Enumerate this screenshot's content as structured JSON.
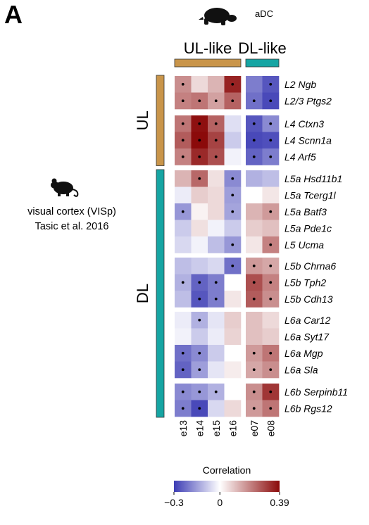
{
  "panel_label": "A",
  "species_label": "aDC",
  "source": {
    "line1": "visual cortex (VISp)",
    "line2": "Tasic et al. 2016"
  },
  "icons": {
    "species_icon": "turtle-icon",
    "source_icon": "mouse-icon"
  },
  "chart_data": {
    "type": "heatmap",
    "column_groups": [
      {
        "label": "UL-like",
        "color": "#c9954a",
        "columns": [
          "e13",
          "e14",
          "e15",
          "e16"
        ]
      },
      {
        "label": "DL-like",
        "color": "#16a5a3",
        "columns": [
          "e07",
          "e08"
        ]
      }
    ],
    "row_groups": [
      {
        "label": "UL",
        "color": "#c9954a",
        "blocks": [
          2,
          3
        ]
      },
      {
        "label": "DL",
        "color": "#16a5a3",
        "blocks": [
          5,
          3,
          4,
          2
        ]
      }
    ],
    "rows": [
      {
        "label": "L2 Ngb",
        "values": [
          0.18,
          0.06,
          0.12,
          0.35
        ],
        "sig": [
          true,
          false,
          false,
          true
        ]
      },
      {
        "label": "L2/3 Ptgs2",
        "values": [
          0.2,
          0.22,
          0.15,
          0.25
        ],
        "sig": [
          true,
          true,
          true,
          true
        ]
      },
      {
        "label": "L4 Ctxn3",
        "values": [
          0.22,
          0.38,
          0.25,
          -0.05
        ],
        "sig": [
          true,
          true,
          true,
          false
        ]
      },
      {
        "label": "L4 Scnn1a",
        "values": [
          0.26,
          0.39,
          0.3,
          -0.08
        ],
        "sig": [
          true,
          true,
          true,
          false
        ]
      },
      {
        "label": "L4 Arf5",
        "values": [
          0.2,
          0.34,
          0.28,
          -0.02
        ],
        "sig": [
          true,
          true,
          true,
          false
        ]
      },
      {
        "label": "L5a Hsd11b1",
        "values": [
          0.12,
          0.24,
          0.05,
          -0.18
        ],
        "sig": [
          false,
          true,
          false,
          true
        ]
      },
      {
        "label": "L5a Tcerg1l",
        "values": [
          -0.03,
          0.08,
          0.06,
          -0.15
        ],
        "sig": [
          false,
          false,
          false,
          true
        ]
      },
      {
        "label": "L5a Batf3",
        "values": [
          -0.16,
          0.02,
          0.06,
          -0.14
        ],
        "sig": [
          true,
          false,
          false,
          true
        ]
      },
      {
        "label": "L5a Pde1c",
        "values": [
          -0.08,
          0.05,
          -0.02,
          -0.08
        ],
        "sig": [
          false,
          false,
          false,
          false
        ]
      },
      {
        "label": "L5 Ucma",
        "values": [
          -0.06,
          -0.02,
          -0.1,
          -0.16
        ],
        "sig": [
          false,
          false,
          false,
          true
        ]
      },
      {
        "label": "L5b Chrna6",
        "values": [
          -0.1,
          -0.08,
          -0.06,
          -0.22
        ],
        "sig": [
          false,
          false,
          false,
          true
        ]
      },
      {
        "label": "L5b Tph2",
        "values": [
          -0.12,
          -0.24,
          -0.2,
          0.0
        ],
        "sig": [
          true,
          true,
          true,
          false
        ]
      },
      {
        "label": "L5b Cdh13",
        "values": [
          -0.1,
          -0.26,
          -0.2,
          0.04
        ],
        "sig": [
          false,
          true,
          true,
          false
        ]
      },
      {
        "label": "L6a Car12",
        "values": [
          -0.03,
          -0.12,
          -0.04,
          0.08
        ],
        "sig": [
          false,
          true,
          false,
          false
        ]
      },
      {
        "label": "L6a Syt17",
        "values": [
          -0.02,
          -0.08,
          -0.03,
          0.07
        ],
        "sig": [
          false,
          false,
          false,
          false
        ]
      },
      {
        "label": "L6a Mgp",
        "values": [
          -0.22,
          -0.18,
          -0.08,
          0.0
        ],
        "sig": [
          true,
          true,
          false,
          false
        ]
      },
      {
        "label": "L6a Sla",
        "values": [
          -0.24,
          -0.15,
          -0.04,
          0.03
        ],
        "sig": [
          true,
          true,
          false,
          false
        ]
      },
      {
        "label": "L6b Serpinb11",
        "values": [
          -0.18,
          -0.16,
          -0.12,
          0.0
        ],
        "sig": [
          true,
          true,
          true,
          false
        ]
      },
      {
        "label": "L6b Rgs12",
        "values": [
          -0.2,
          -0.28,
          -0.06,
          0.06
        ],
        "sig": [
          true,
          true,
          false,
          false
        ]
      }
    ],
    "rows_dl": [
      {
        "values": [
          -0.2,
          -0.26
        ],
        "sig": [
          false,
          true
        ]
      },
      {
        "values": [
          -0.22,
          -0.28
        ],
        "sig": [
          true,
          true
        ]
      },
      {
        "values": [
          -0.26,
          -0.18
        ],
        "sig": [
          true,
          true
        ]
      },
      {
        "values": [
          -0.28,
          -0.27
        ],
        "sig": [
          true,
          true
        ]
      },
      {
        "values": [
          -0.24,
          -0.2
        ],
        "sig": [
          true,
          true
        ]
      },
      {
        "values": [
          -0.12,
          -0.1
        ],
        "sig": [
          false,
          false
        ]
      },
      {
        "values": [
          0.0,
          0.04
        ],
        "sig": [
          false,
          false
        ]
      },
      {
        "values": [
          0.12,
          0.16
        ],
        "sig": [
          false,
          true
        ]
      },
      {
        "values": [
          0.08,
          0.1
        ],
        "sig": [
          false,
          false
        ]
      },
      {
        "values": [
          0.04,
          0.2
        ],
        "sig": [
          false,
          true
        ]
      },
      {
        "values": [
          0.16,
          0.14
        ],
        "sig": [
          true,
          true
        ]
      },
      {
        "values": [
          0.28,
          0.2
        ],
        "sig": [
          true,
          true
        ]
      },
      {
        "values": [
          0.26,
          0.18
        ],
        "sig": [
          true,
          true
        ]
      },
      {
        "values": [
          0.1,
          0.06
        ],
        "sig": [
          false,
          false
        ]
      },
      {
        "values": [
          0.1,
          0.08
        ],
        "sig": [
          false,
          false
        ]
      },
      {
        "values": [
          0.16,
          0.22
        ],
        "sig": [
          true,
          true
        ]
      },
      {
        "values": [
          0.14,
          0.18
        ],
        "sig": [
          true,
          true
        ]
      },
      {
        "values": [
          0.18,
          0.32
        ],
        "sig": [
          true,
          true
        ]
      },
      {
        "values": [
          0.16,
          0.22
        ],
        "sig": [
          true,
          true
        ]
      }
    ],
    "legend": {
      "title": "Correlation",
      "min": -0.3,
      "max": 0.39,
      "ticks": [
        {
          "value": -0.3,
          "label": "−0.3"
        },
        {
          "value": 0,
          "label": "0"
        },
        {
          "value": 0.39,
          "label": "0.39"
        }
      ],
      "low_color": "#3c3cb4",
      "mid_color": "#ffffff",
      "high_color": "#8b0a0a"
    },
    "significance_marker": "dot"
  }
}
